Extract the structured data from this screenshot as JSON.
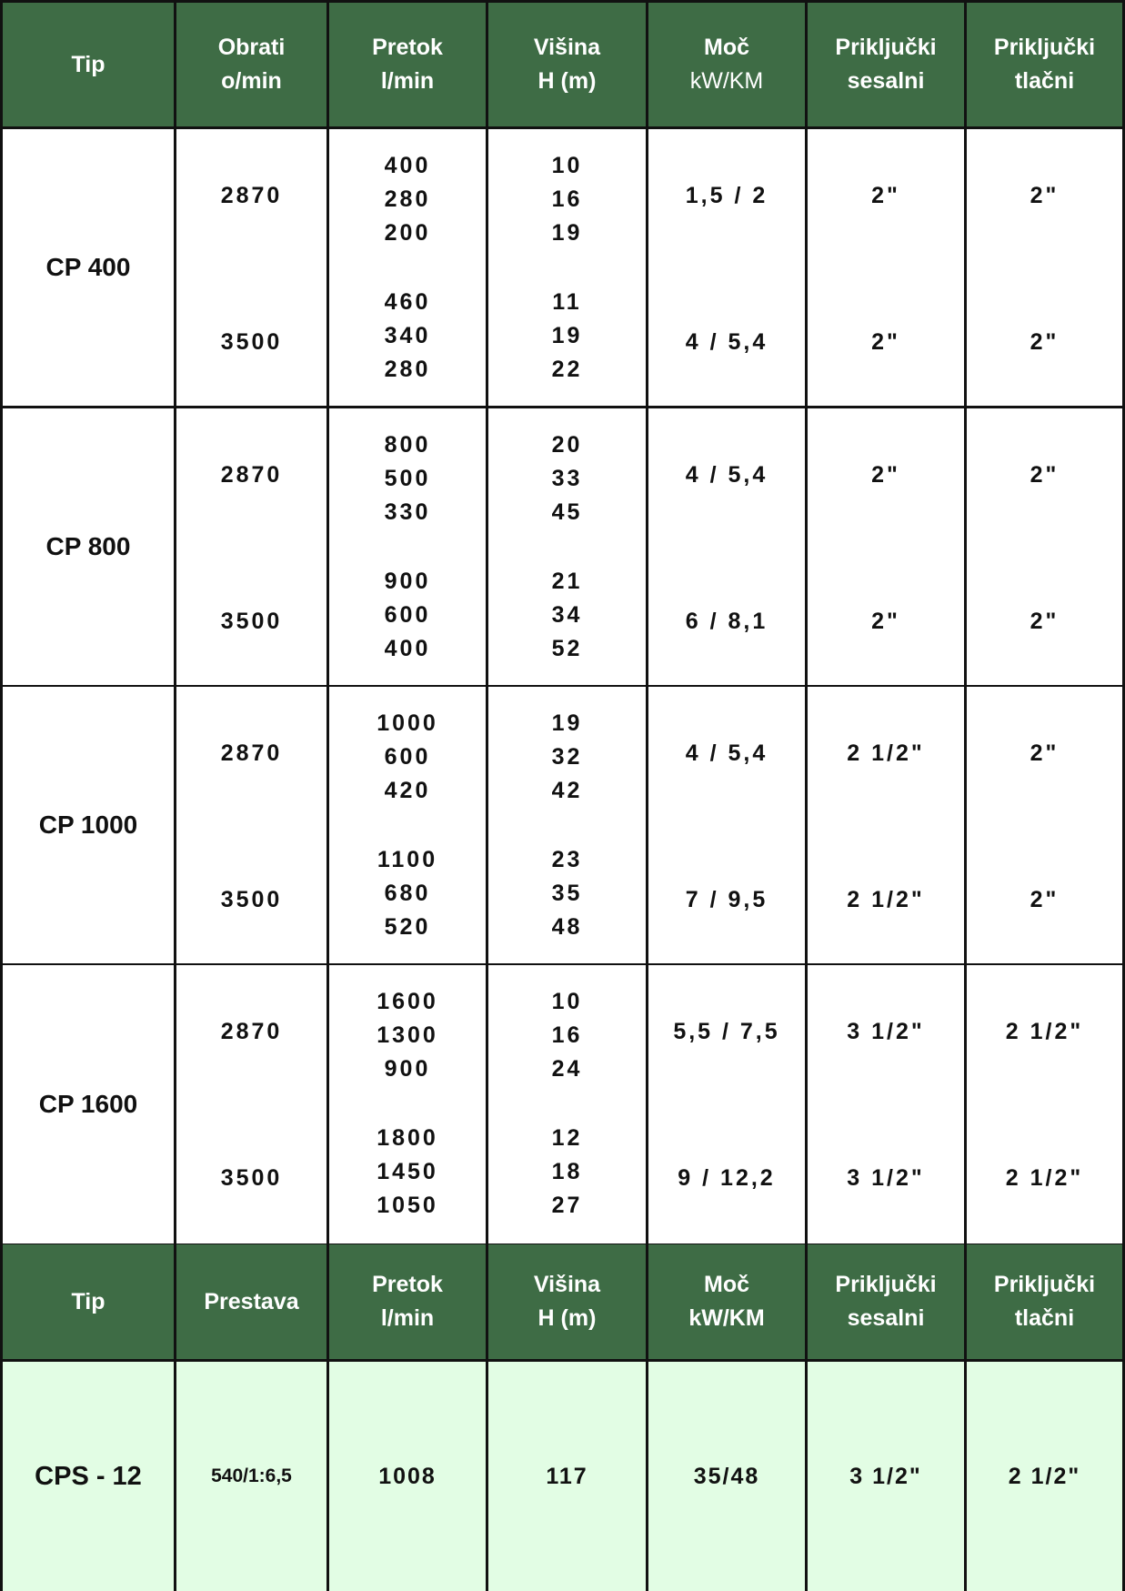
{
  "header1": [
    {
      "l1": "Tip",
      "l2": ""
    },
    {
      "l1": "Obrati",
      "l2": "o/min"
    },
    {
      "l1": "Pretok",
      "l2": "l/min"
    },
    {
      "l1": "Višina",
      "l2": "H (m)"
    },
    {
      "l1": "Moč",
      "l2": "kW/KM"
    },
    {
      "l1": "Priključki",
      "l2": "sesalni"
    },
    {
      "l1": "Priključki",
      "l2": "tlačni"
    }
  ],
  "groups": [
    {
      "tip": "CP 400",
      "sub": [
        {
          "rpm": "2870",
          "flow": [
            "400",
            "280",
            "200"
          ],
          "height": [
            "10",
            "16",
            "19"
          ],
          "power": "1,5 / 2",
          "suction": "2\"",
          "pressure": "2\""
        },
        {
          "rpm": "3500",
          "flow": [
            "460",
            "340",
            "280"
          ],
          "height": [
            "11",
            "19",
            "22"
          ],
          "power": "4 / 5,4",
          "suction": "2\"",
          "pressure": "2\""
        }
      ]
    },
    {
      "tip": "CP 800",
      "sub": [
        {
          "rpm": "2870",
          "flow": [
            "800",
            "500",
            "330"
          ],
          "height": [
            "20",
            "33",
            "45"
          ],
          "power": "4 / 5,4",
          "suction": "2\"",
          "pressure": "2\""
        },
        {
          "rpm": "3500",
          "flow": [
            "900",
            "600",
            "400"
          ],
          "height": [
            "21",
            "34",
            "52"
          ],
          "power": "6 / 8,1",
          "suction": "2\"",
          "pressure": "2\""
        }
      ]
    },
    {
      "tip": "CP 1000",
      "sub": [
        {
          "rpm": "2870",
          "flow": [
            "1000",
            "600",
            "420"
          ],
          "height": [
            "19",
            "32",
            "42"
          ],
          "power": "4 / 5,4",
          "suction": "2 1/2\"",
          "pressure": "2\""
        },
        {
          "rpm": "3500",
          "flow": [
            "1100",
            "680",
            "520"
          ],
          "height": [
            "23",
            "35",
            "48"
          ],
          "power": "7 / 9,5",
          "suction": "2 1/2\"",
          "pressure": "2\""
        }
      ]
    },
    {
      "tip": "CP 1600",
      "sub": [
        {
          "rpm": "2870",
          "flow": [
            "1600",
            "1300",
            "900"
          ],
          "height": [
            "10",
            "16",
            "24"
          ],
          "power": "5,5 / 7,5",
          "suction": "3 1/2\"",
          "pressure": "2 1/2\""
        },
        {
          "rpm": "3500",
          "flow": [
            "1800",
            "1450",
            "1050"
          ],
          "height": [
            "12",
            "18",
            "27"
          ],
          "power": "9 / 12,2",
          "suction": "3 1/2\"",
          "pressure": "2 1/2\""
        }
      ]
    }
  ],
  "header2": [
    {
      "l1": "Tip",
      "l2": ""
    },
    {
      "l1": "Prestava",
      "l2": ""
    },
    {
      "l1": "Pretok",
      "l2": "l/min"
    },
    {
      "l1": "Višina",
      "l2": "H (m)"
    },
    {
      "l1": "Moč",
      "l2": "kW/KM"
    },
    {
      "l1": "Priključki",
      "l2": "sesalni"
    },
    {
      "l1": "Priključki",
      "l2": "tlačni"
    }
  ],
  "cps": [
    "CPS - 12",
    "540/1:6,5",
    "1008",
    "117",
    "35/48",
    "3 1/2\"",
    "2 1/2\""
  ],
  "colors": {
    "header_bg": "#3e6c45",
    "cps_bg": "#e2fde4",
    "border": "#111111"
  }
}
